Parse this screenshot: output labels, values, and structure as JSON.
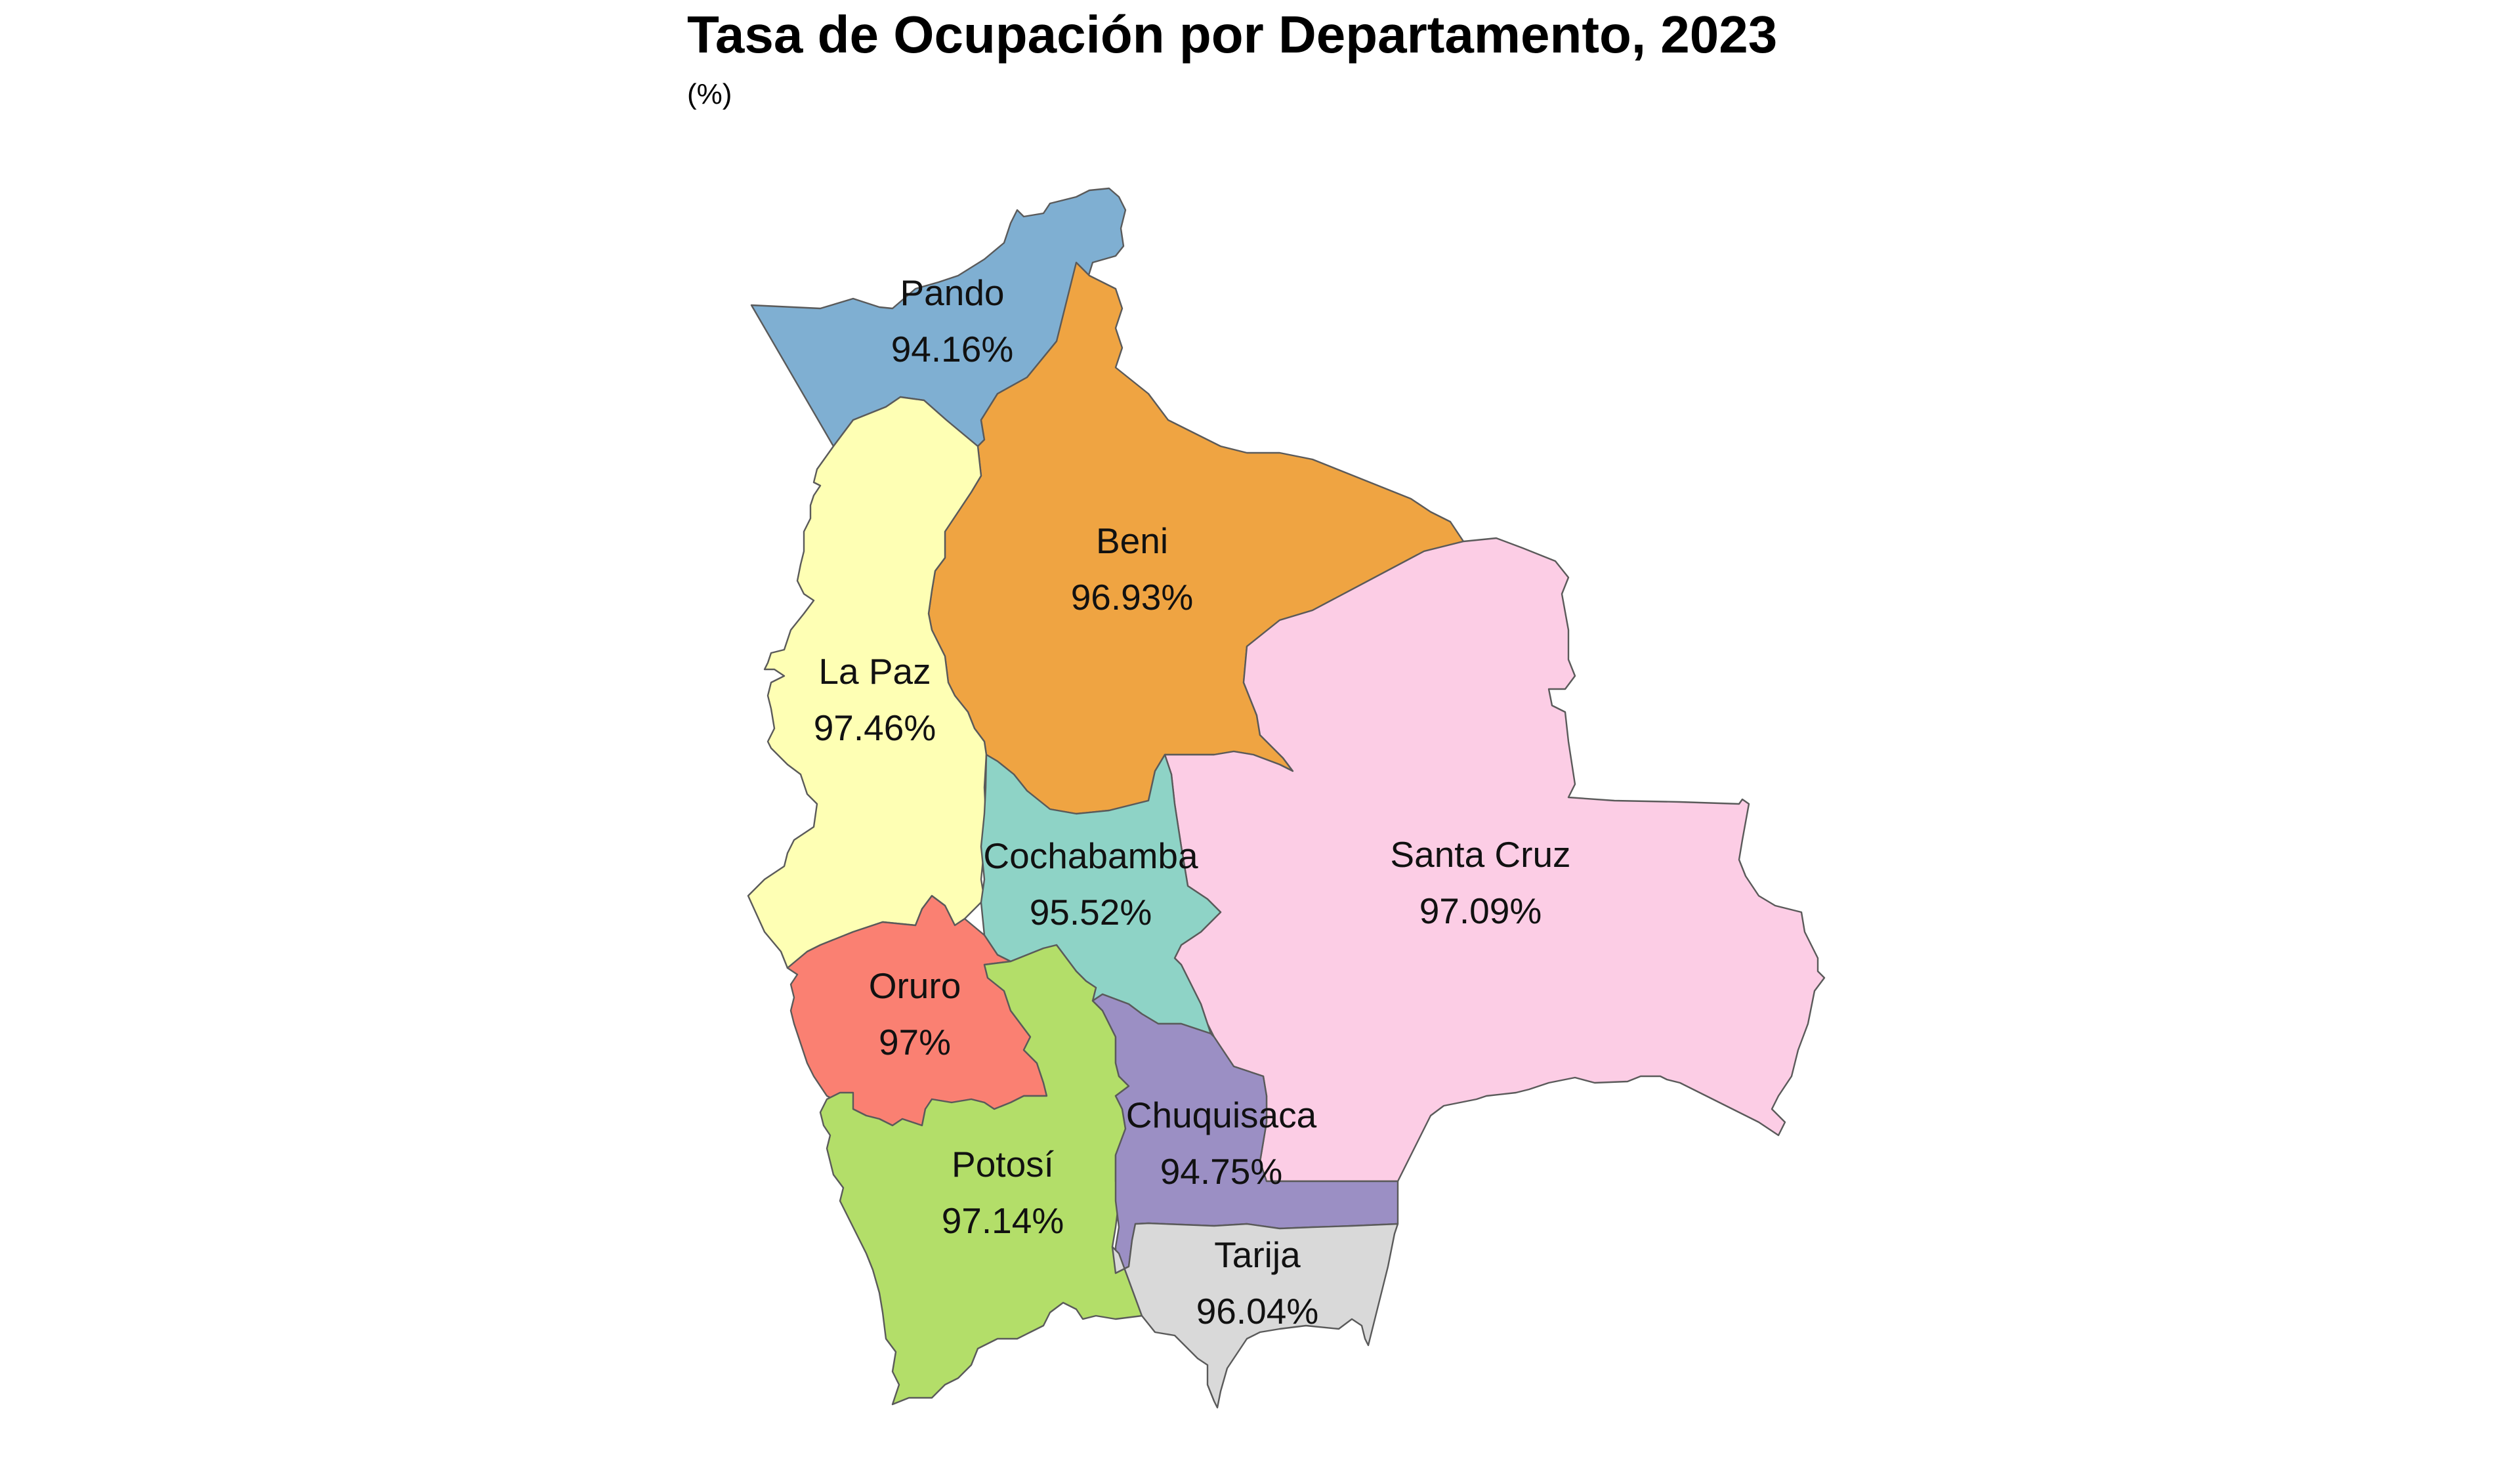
{
  "title": "Tasa de Ocupación por Departamento, 2023",
  "subtitle": "(%)",
  "regions": [
    {
      "key": "pando",
      "name": "Pando",
      "value": "94.16%",
      "color": "#7fafd2"
    },
    {
      "key": "beni",
      "name": "Beni",
      "value": "96.93%",
      "color": "#efa442"
    },
    {
      "key": "lapaz",
      "name": "La Paz",
      "value": "97.46%",
      "color": "#feffb4"
    },
    {
      "key": "santacruz",
      "name": "Santa Cruz",
      "value": "97.09%",
      "color": "#fccde5"
    },
    {
      "key": "cochabamba",
      "name": "Cochabamba",
      "value": "95.52%",
      "color": "#8ed3c6"
    },
    {
      "key": "oruro",
      "name": "Oruro",
      "value": "97%",
      "color": "#fa8072"
    },
    {
      "key": "potosi",
      "name": "Potosí",
      "value": "97.14%",
      "color": "#b3de69"
    },
    {
      "key": "chuquisaca",
      "name": "Chuquisaca",
      "value": "94.75%",
      "color": "#9b8fc4"
    },
    {
      "key": "tarija",
      "name": "Tarija",
      "value": "96.04%",
      "color": "#d9d9d9"
    }
  ]
}
